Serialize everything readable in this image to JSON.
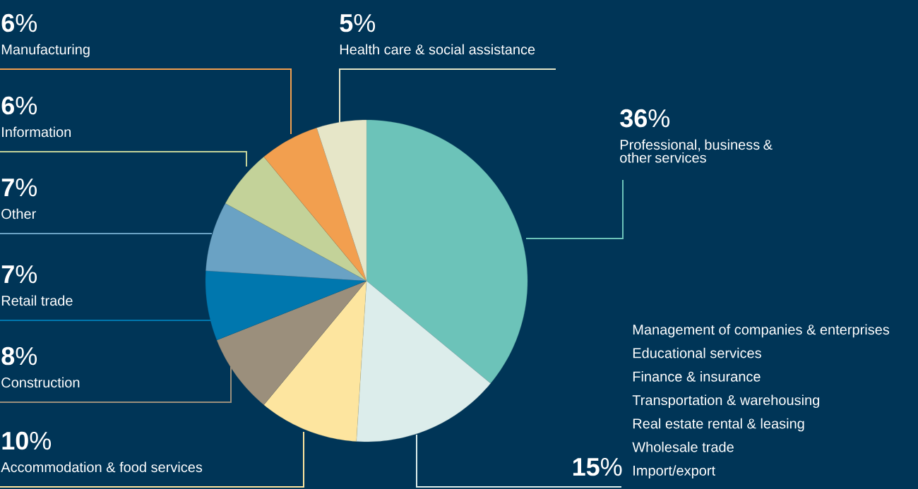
{
  "chart_data": {
    "type": "pie",
    "categories": [
      "Professional, business & other services",
      null,
      "Accommodation & food services",
      "Construction",
      "Retail trade",
      "Other",
      "Information",
      "Manufacturing",
      "Health care & social assistance"
    ],
    "values": [
      36,
      15,
      10,
      8,
      7,
      7,
      6,
      6,
      5
    ],
    "value_labels": [
      "**36**%",
      "**15**%",
      "**10**%",
      "**8**%",
      "**7**%",
      "**7**%",
      "**6**%",
      "**6**%",
      "**5**%"
    ],
    "colors": [
      "#6cc3b9",
      "#dcedeb",
      "#fde59f",
      "#9b8f7c",
      "#0077ae",
      "#6aa2c4",
      "#c3d299",
      "#f29f4f",
      "#e6e6c8"
    ],
    "annotations": [
      "Management of companies & enterprises",
      "Educational services",
      "Finance & insurance",
      "Transportation & warehousing",
      "Real estate rental & leasing",
      "Wholesale trade",
      "Import/export"
    ]
  }
}
